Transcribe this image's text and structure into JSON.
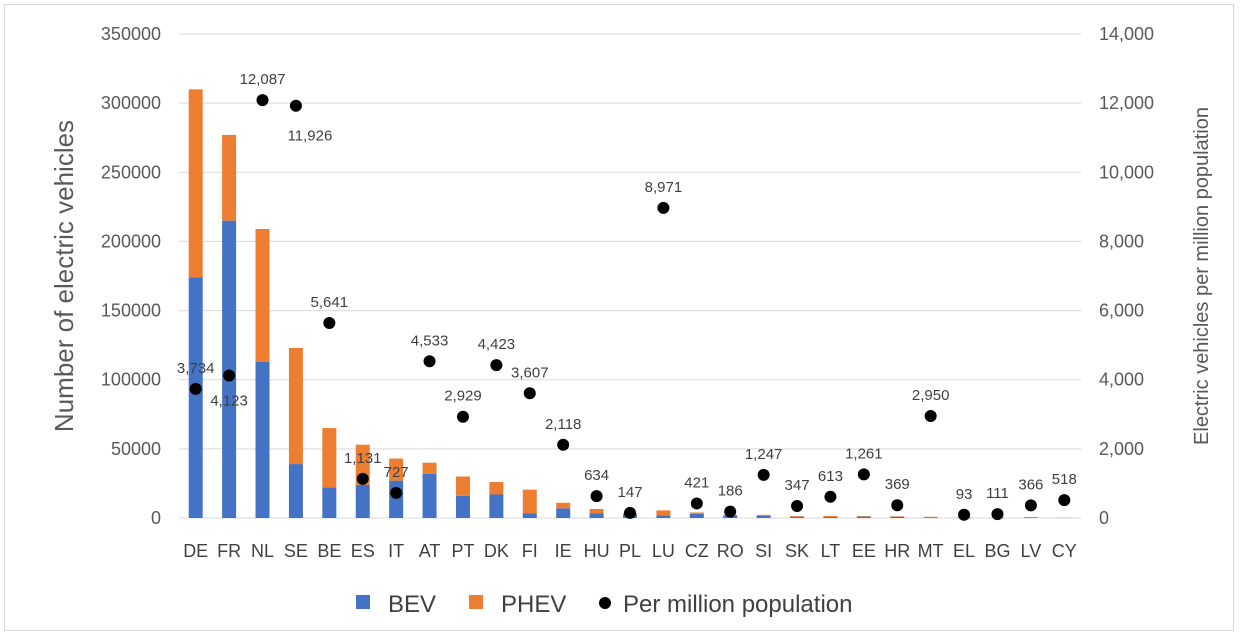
{
  "chart_data": {
    "type": "bar",
    "stacked": true,
    "title": "",
    "ylabel": "Number of electric vehicles",
    "y2label": "Electric vehicles per million population",
    "ylim": [
      0,
      350000
    ],
    "y2lim": [
      0,
      14000
    ],
    "yticks": [
      "0",
      "50000",
      "100000",
      "150000",
      "200000",
      "250000",
      "300000",
      "350000"
    ],
    "y2ticks": [
      "0",
      "2,000",
      "4,000",
      "6,000",
      "8,000",
      "10,000",
      "12,000",
      "14,000"
    ],
    "grid": true,
    "legend_position": "bottom",
    "categories": [
      "DE",
      "FR",
      "NL",
      "SE",
      "BE",
      "ES",
      "IT",
      "AT",
      "PT",
      "DK",
      "FI",
      "IE",
      "HU",
      "PL",
      "LU",
      "CZ",
      "RO",
      "SI",
      "SK",
      "LT",
      "EE",
      "HR",
      "MT",
      "EL",
      "BG",
      "LV",
      "CY"
    ],
    "series": [
      {
        "name": "BEV",
        "type": "bar",
        "color": "#4472c4",
        "values": [
          174000,
          215000,
          113000,
          39000,
          22000,
          24000,
          27000,
          32000,
          16000,
          17000,
          3500,
          7000,
          3500,
          2500,
          2000,
          3000,
          1500,
          1500,
          900,
          800,
          1000,
          900,
          300,
          300,
          200,
          400,
          100
        ]
      },
      {
        "name": "PHEV",
        "type": "bar",
        "color": "#ed7d31",
        "values": [
          136000,
          62000,
          96000,
          84000,
          43000,
          29000,
          16000,
          8000,
          14000,
          9000,
          17000,
          4000,
          3000,
          1000,
          3500,
          1000,
          700,
          800,
          500,
          700,
          400,
          400,
          600,
          200,
          100,
          200,
          100
        ]
      },
      {
        "name": "Per million population",
        "type": "scatter",
        "axis": "right",
        "color": "#000000",
        "values": [
          3734,
          4123,
          12087,
          11926,
          5641,
          1131,
          727,
          4533,
          2929,
          4423,
          3607,
          2118,
          634,
          147,
          8971,
          421,
          186,
          1247,
          347,
          613,
          1261,
          369,
          2950,
          93,
          111,
          366,
          518
        ],
        "labels": [
          "3,734",
          "4,123",
          "12,087",
          "11,926",
          "5,641",
          "1,131",
          "727",
          "4,533",
          "2,929",
          "4,423",
          "3,607",
          "2,118",
          "634",
          "147",
          "8,971",
          "421",
          "186",
          "1,247",
          "347",
          "613",
          "1,261",
          "369",
          "2,950",
          "93",
          "111",
          "366",
          "518"
        ]
      }
    ]
  }
}
